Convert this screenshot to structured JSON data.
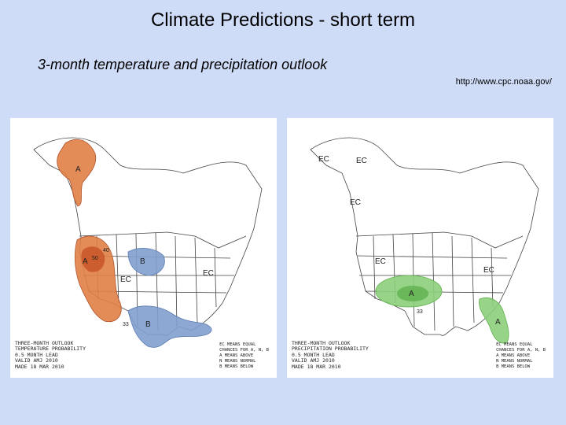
{
  "header": {
    "title": "Climate Predictions - short term",
    "subtitle": "3-month temperature and precipitation outlook",
    "source_url": "http://www.cpc.noaa.gov/"
  },
  "temperature_map": {
    "caption": [
      "THREE-MONTH OUTLOOK",
      "TEMPERATURE PROBABILITY",
      "0.5 MONTH LEAD",
      "VALID AMJ 2010",
      "MADE 18 MAR 2010"
    ],
    "legend": [
      "EC MEANS EQUAL",
      "CHANCES FOR A, N, B",
      "A MEANS ABOVE",
      "N MEANS NORMAL",
      "B MEANS BELOW"
    ],
    "labels": {
      "alaska": "A",
      "west": "A",
      "plains": "B",
      "south": "B",
      "ec1": "EC",
      "ec2": "EC",
      "c40": "40",
      "c33": "33",
      "c50": "50"
    },
    "colors": {
      "above": "#e07f45",
      "above_dark": "#c9582a",
      "below": "#7f9fce",
      "below_dark": "#6a86bb"
    }
  },
  "precip_map": {
    "caption": [
      "THREE-MONTH OUTLOOK",
      "PRECIPITATION PROBABILITY",
      "0.5 MONTH LEAD",
      "VALID AMJ 2010",
      "MADE 18 MAR 2010"
    ],
    "legend": [
      "EC MEANS EQUAL",
      "CHANCES FOR A, N, B",
      "A MEANS ABOVE",
      "N MEANS NORMAL",
      "B MEANS BELOW"
    ],
    "labels": {
      "ec_ak1": "EC",
      "ec_ak2": "EC",
      "ec_can": "EC",
      "ec_west": "EC",
      "ec_east": "EC",
      "center": "A",
      "florida": "A",
      "c33": "33"
    },
    "colors": {
      "above": "#8ccf7a",
      "above_dark": "#5fb04d"
    }
  }
}
